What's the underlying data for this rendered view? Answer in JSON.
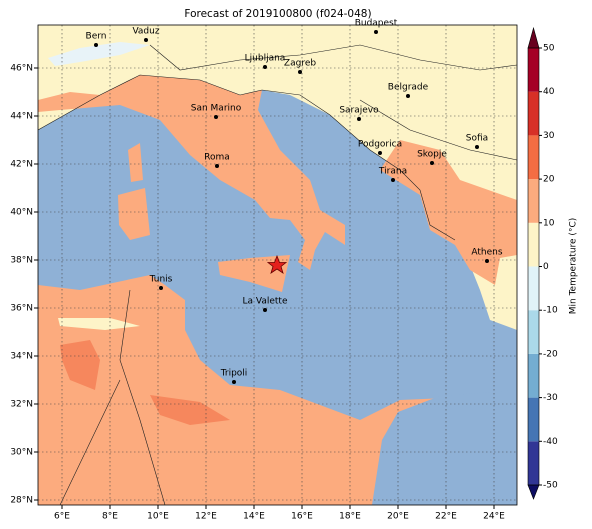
{
  "title": "Forecast of 2019100800 (f024-048)",
  "longitude_labels": [
    "6°E",
    "8°E",
    "10°E",
    "12°E",
    "14°E",
    "16°E",
    "18°E",
    "20°E",
    "22°E",
    "24°E"
  ],
  "latitude_labels": [
    "28°N",
    "30°N",
    "32°N",
    "34°N",
    "36°N",
    "38°N",
    "40°N",
    "42°N",
    "44°N",
    "46°N"
  ],
  "cities": [
    {
      "name": "Bern"
    },
    {
      "name": "Vaduz"
    },
    {
      "name": "Budapest"
    },
    {
      "name": "Ljubljana"
    },
    {
      "name": "Zagreb"
    },
    {
      "name": "Belgrade"
    },
    {
      "name": "San Marino"
    },
    {
      "name": "Sarajevo"
    },
    {
      "name": "Sofia"
    },
    {
      "name": "Podgorica"
    },
    {
      "name": "Skopje"
    },
    {
      "name": "Roma"
    },
    {
      "name": "Tirana"
    },
    {
      "name": "Athens"
    },
    {
      "name": "Tunis"
    },
    {
      "name": "La Valette"
    },
    {
      "name": "Tripoli"
    }
  ],
  "colorbar": {
    "label": "Min Temperature (°C)",
    "ticks": [
      -50,
      -40,
      -30,
      -20,
      -10,
      0,
      10,
      20,
      30,
      40,
      50
    ],
    "colors": [
      "#0d0d62",
      "#313695",
      "#4575b4",
      "#74add1",
      "#abd9e9",
      "#e0f3f8",
      "#fdf4c8",
      "#fcab7e",
      "#f46d43",
      "#d73027",
      "#a50026",
      "#67001f"
    ]
  }
}
